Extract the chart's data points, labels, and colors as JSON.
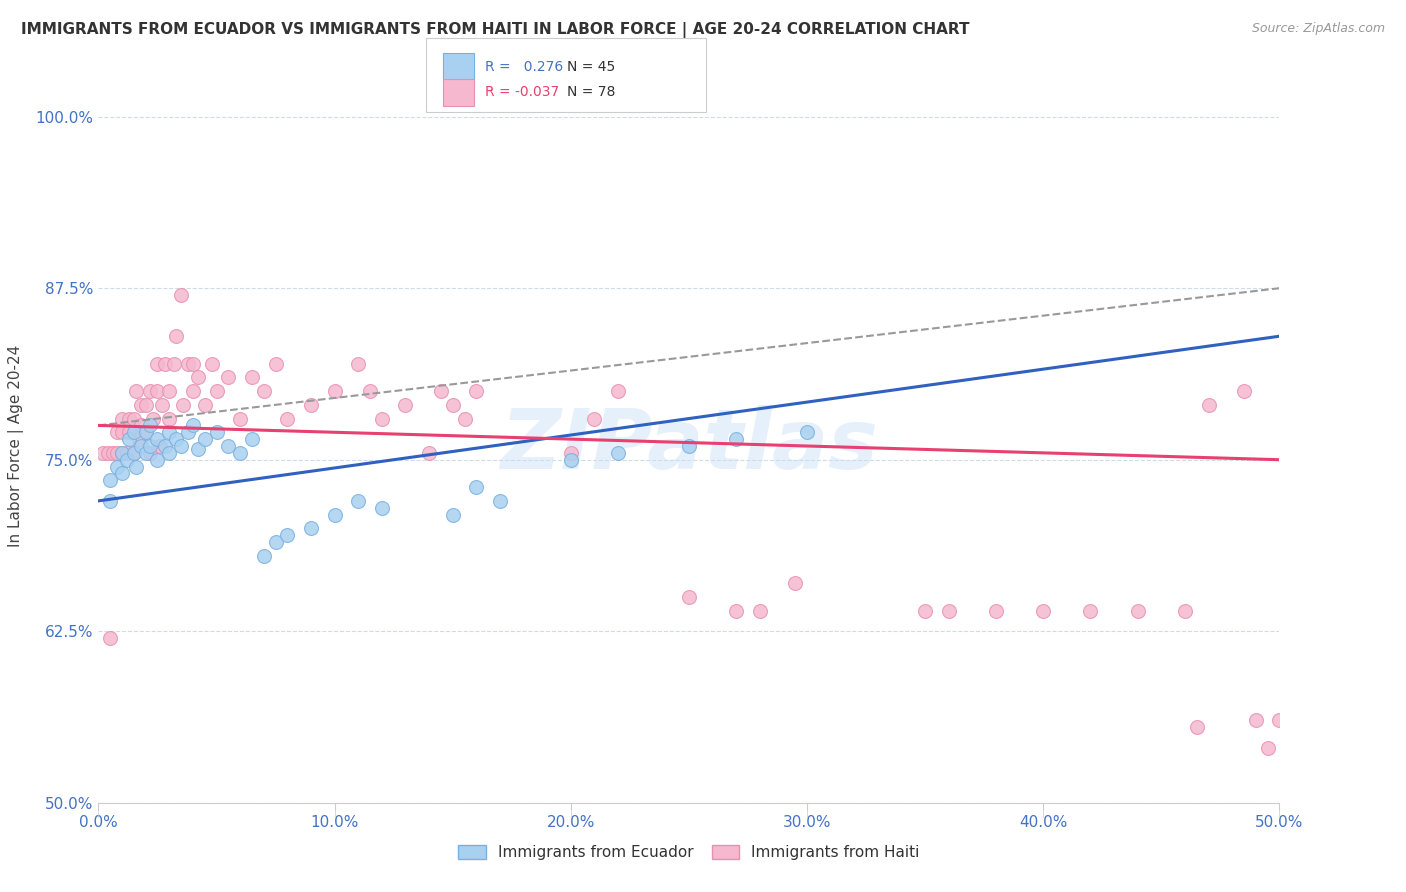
{
  "title": "IMMIGRANTS FROM ECUADOR VS IMMIGRANTS FROM HAITI IN LABOR FORCE | AGE 20-24 CORRELATION CHART",
  "source": "Source: ZipAtlas.com",
  "ylabel": "In Labor Force | Age 20-24",
  "xlim": [
    0.0,
    0.5
  ],
  "ylim": [
    0.5,
    1.02
  ],
  "yticks": [
    0.5,
    0.625,
    0.75,
    0.875,
    1.0
  ],
  "ytick_labels": [
    "50.0%",
    "62.5%",
    "75.0%",
    "87.5%",
    "100.0%"
  ],
  "xticks": [
    0.0,
    0.1,
    0.2,
    0.3,
    0.4,
    0.5
  ],
  "xtick_labels": [
    "0.0%",
    "10.0%",
    "20.0%",
    "30.0%",
    "40.0%",
    "50.0%"
  ],
  "ecuador_color": "#a8d0f0",
  "haiti_color": "#f5b8ce",
  "ecuador_edge": "#7ab0e0",
  "haiti_edge": "#e890b0",
  "trend_ecuador_color": "#3060c0",
  "trend_haiti_color": "#e84070",
  "trend_dashed_color": "#999999",
  "R_ecuador": 0.276,
  "N_ecuador": 45,
  "R_haiti": -0.037,
  "N_haiti": 78,
  "ecuador_x": [
    0.005,
    0.005,
    0.008,
    0.01,
    0.01,
    0.012,
    0.013,
    0.015,
    0.015,
    0.016,
    0.018,
    0.02,
    0.02,
    0.022,
    0.022,
    0.025,
    0.025,
    0.028,
    0.03,
    0.03,
    0.033,
    0.035,
    0.038,
    0.04,
    0.042,
    0.045,
    0.05,
    0.055,
    0.06,
    0.065,
    0.07,
    0.075,
    0.08,
    0.09,
    0.1,
    0.11,
    0.12,
    0.15,
    0.16,
    0.17,
    0.2,
    0.22,
    0.25,
    0.27,
    0.3
  ],
  "ecuador_y": [
    0.735,
    0.72,
    0.745,
    0.74,
    0.755,
    0.75,
    0.765,
    0.755,
    0.77,
    0.745,
    0.76,
    0.755,
    0.77,
    0.76,
    0.775,
    0.765,
    0.75,
    0.76,
    0.77,
    0.755,
    0.765,
    0.76,
    0.77,
    0.775,
    0.758,
    0.765,
    0.77,
    0.76,
    0.755,
    0.765,
    0.68,
    0.69,
    0.695,
    0.7,
    0.71,
    0.72,
    0.715,
    0.71,
    0.73,
    0.72,
    0.75,
    0.755,
    0.76,
    0.765,
    0.77
  ],
  "haiti_x": [
    0.002,
    0.004,
    0.005,
    0.006,
    0.008,
    0.008,
    0.01,
    0.01,
    0.01,
    0.012,
    0.013,
    0.013,
    0.015,
    0.015,
    0.016,
    0.017,
    0.018,
    0.018,
    0.02,
    0.02,
    0.022,
    0.022,
    0.023,
    0.025,
    0.025,
    0.026,
    0.027,
    0.028,
    0.03,
    0.03,
    0.032,
    0.033,
    0.035,
    0.036,
    0.038,
    0.04,
    0.04,
    0.042,
    0.045,
    0.048,
    0.05,
    0.055,
    0.06,
    0.065,
    0.07,
    0.075,
    0.08,
    0.09,
    0.1,
    0.11,
    0.115,
    0.12,
    0.13,
    0.14,
    0.145,
    0.15,
    0.155,
    0.16,
    0.2,
    0.21,
    0.22,
    0.25,
    0.27,
    0.28,
    0.295,
    0.35,
    0.36,
    0.38,
    0.4,
    0.42,
    0.44,
    0.46,
    0.465,
    0.47,
    0.485,
    0.49,
    0.495,
    0.5
  ],
  "haiti_y": [
    0.755,
    0.755,
    0.62,
    0.755,
    0.755,
    0.77,
    0.755,
    0.77,
    0.78,
    0.755,
    0.77,
    0.78,
    0.755,
    0.78,
    0.8,
    0.765,
    0.775,
    0.79,
    0.77,
    0.79,
    0.8,
    0.755,
    0.78,
    0.8,
    0.82,
    0.76,
    0.79,
    0.82,
    0.78,
    0.8,
    0.82,
    0.84,
    0.87,
    0.79,
    0.82,
    0.8,
    0.82,
    0.81,
    0.79,
    0.82,
    0.8,
    0.81,
    0.78,
    0.81,
    0.8,
    0.82,
    0.78,
    0.79,
    0.8,
    0.82,
    0.8,
    0.78,
    0.79,
    0.755,
    0.8,
    0.79,
    0.78,
    0.8,
    0.755,
    0.78,
    0.8,
    0.65,
    0.64,
    0.64,
    0.66,
    0.64,
    0.64,
    0.64,
    0.64,
    0.64,
    0.64,
    0.64,
    0.555,
    0.79,
    0.8,
    0.56,
    0.54,
    0.56
  ],
  "ecuador_trend_x0": 0.0,
  "ecuador_trend_y0": 0.72,
  "ecuador_trend_x1": 0.5,
  "ecuador_trend_y1": 0.84,
  "haiti_trend_x0": 0.0,
  "haiti_trend_y0": 0.775,
  "haiti_trend_x1": 0.5,
  "haiti_trend_y1": 0.75,
  "dashed_trend_x0": 0.0,
  "dashed_trend_y0": 0.775,
  "dashed_trend_x1": 0.5,
  "dashed_trend_y1": 0.875
}
